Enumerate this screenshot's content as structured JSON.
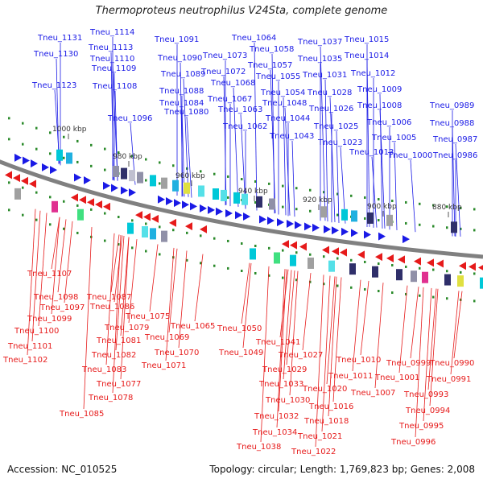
{
  "title": "Thermoproteus neutrophilus V24Sta, complete genome",
  "footer": {
    "accession": "Accession: NC_010525",
    "topology": "Topology: circular; Length: 1,769,823 bp; Genes: 2,008"
  },
  "colors": {
    "forward": "#1a1ae6",
    "reverse": "#e61a1a",
    "backbone": "#808080",
    "tick": "#2a8a2a"
  },
  "kbp_labels": [
    "1000 kbp",
    "980 kbp",
    "960 kbp",
    "940 kbp",
    "920 kbp",
    "900 kbp",
    "880 kbp"
  ],
  "forward_labels": [
    "Tneu_1131",
    "Tneu_1130",
    "Tneu_1123",
    "Tneu_1114",
    "Tneu_1113",
    "Tneu_1110",
    "Tneu_1109",
    "Tneu_1108",
    "Tneu_1096",
    "Tneu_1091",
    "Tneu_1090",
    "Tneu_1089",
    "Tneu_1088",
    "Tneu_1084",
    "Tneu_1080",
    "Tneu_1073",
    "Tneu_1072",
    "Tneu_1068",
    "Tneu_1067",
    "Tneu_1064",
    "Tneu_1063",
    "Tneu_1062",
    "Tneu_1058",
    "Tneu_1057",
    "Tneu_1055",
    "Tneu_1054",
    "Tneu_1048",
    "Tneu_1044",
    "Tneu_1043",
    "Tneu_1037",
    "Tneu_1035",
    "Tneu_1031",
    "Tneu_1028",
    "Tneu_1026",
    "Tneu_1025",
    "Tneu_1023",
    "Tneu_1015",
    "Tneu_1014",
    "Tneu_1013",
    "Tneu_1012",
    "Tneu_1009",
    "Tneu_1008",
    "Tneu_1006",
    "Tneu_1005",
    "Tneu_1000",
    "Tneu_0989",
    "Tneu_0988",
    "Tneu_0987",
    "Tneu_0986"
  ],
  "reverse_labels": [
    "Tneu_1107",
    "Tneu_1098",
    "Tneu_1097",
    "Tneu_1099",
    "Tneu_1100",
    "Tneu_1101",
    "Tneu_1102",
    "Tneu_1087",
    "Tneu_1086",
    "Tneu_1079",
    "Tneu_1081",
    "Tneu_1082",
    "Tneu_1083",
    "Tneu_1077",
    "Tneu_1078",
    "Tneu_1085",
    "Tneu_1075",
    "Tneu_1069",
    "Tneu_1070",
    "Tneu_1071",
    "Tneu_1065",
    "Tneu_1050",
    "Tneu_1049",
    "Tneu_1041",
    "Tneu_1027",
    "Tneu_1029",
    "Tneu_1033",
    "Tneu_1030",
    "Tneu_1032",
    "Tneu_1034",
    "Tneu_1038",
    "Tneu_1020",
    "Tneu_1016",
    "Tneu_1018",
    "Tneu_1021",
    "Tneu_1022",
    "Tneu_1010",
    "Tneu_1011",
    "Tneu_1007",
    "Tneu_0999",
    "Tneu_1001",
    "Tneu_0990",
    "Tneu_0991",
    "Tneu_0993",
    "Tneu_0994",
    "Tneu_0995",
    "Tneu_0996"
  ]
}
